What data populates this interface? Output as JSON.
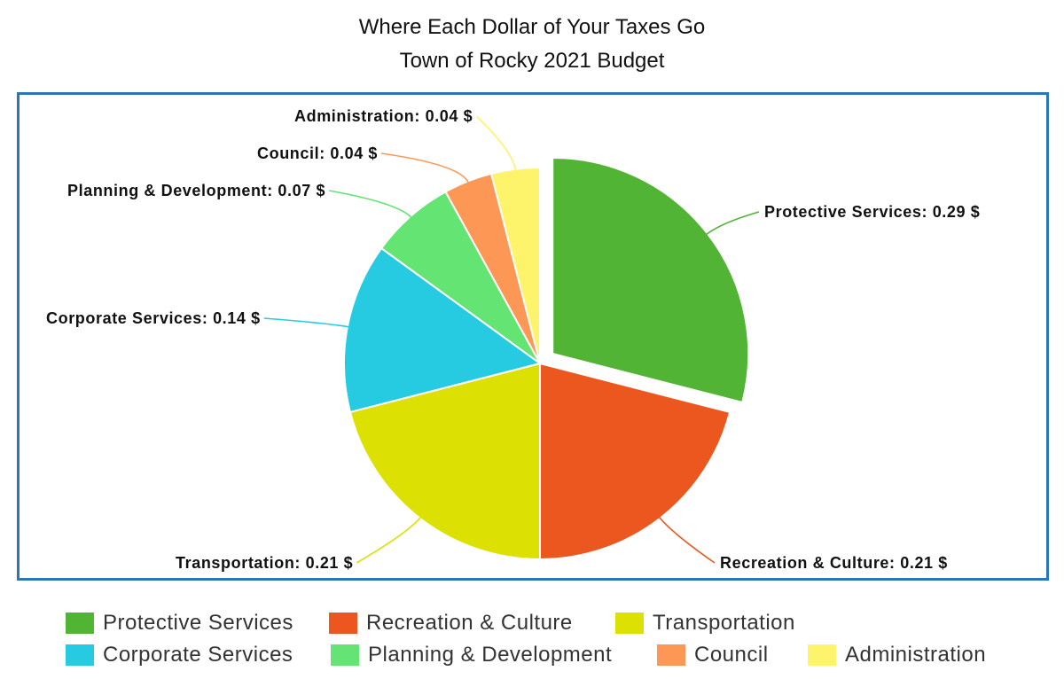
{
  "chart_data": {
    "type": "pie",
    "title": "Where Each Dollar of Your Taxes Go",
    "subtitle": "Town of Rocky 2021 Budget",
    "unit": "$",
    "legend_position": "bottom",
    "exploded_slice": "Protective Services",
    "slices": [
      {
        "label": "Protective Services",
        "value": 0.29,
        "value_text": "0.29",
        "color": "#52b434"
      },
      {
        "label": "Recreation & Culture",
        "value": 0.21,
        "value_text": "0.21",
        "color": "#ec561f"
      },
      {
        "label": "Transportation",
        "value": 0.21,
        "value_text": "0.21",
        "color": "#dce003"
      },
      {
        "label": "Corporate Services",
        "value": 0.14,
        "value_text": "0.14",
        "color": "#26cbe2"
      },
      {
        "label": "Planning & Development",
        "value": 0.07,
        "value_text": "0.07",
        "color": "#64e472"
      },
      {
        "label": "Council",
        "value": 0.04,
        "value_text": "0.04",
        "color": "#fd9756"
      },
      {
        "label": "Administration",
        "value": 0.04,
        "value_text": "0.04",
        "color": "#fdf46b"
      }
    ]
  },
  "colors": {
    "frame_border": "#2a76b8"
  }
}
